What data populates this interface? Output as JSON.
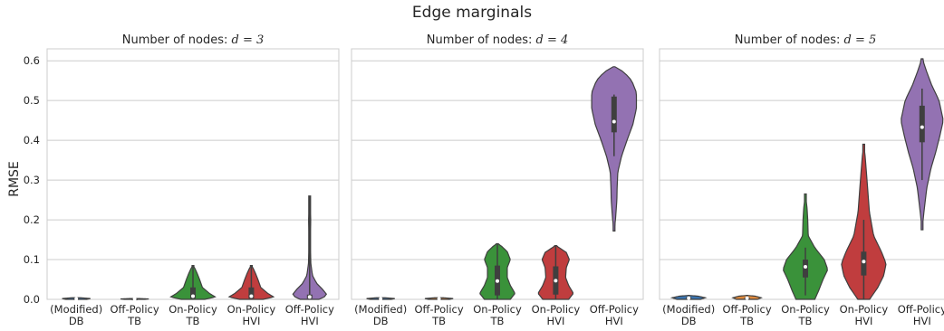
{
  "chart_data": {
    "type": "violin",
    "title": "Edge marginals",
    "ylabel": "RMSE",
    "ylim": [
      0,
      0.63
    ],
    "yticks": [
      "0.0",
      "0.1",
      "0.2",
      "0.3",
      "0.4",
      "0.5",
      "0.6"
    ],
    "grid": "horizontal",
    "categories": [
      [
        "(Modified)",
        "DB"
      ],
      [
        "Off-Policy",
        "TB"
      ],
      [
        "On-Policy",
        "TB"
      ],
      [
        "On-Policy",
        "HVI"
      ],
      [
        "Off-Policy",
        "HVI"
      ]
    ],
    "colors": [
      "#3a74b0",
      "#e08a3c",
      "#3a923a",
      "#c03d3e",
      "#9372b2"
    ],
    "panels": [
      {
        "title_prefix": "Number of nodes: ",
        "title_math": "d = 3",
        "violins": [
          {
            "min": 0.0,
            "max": 0.004,
            "profile": [
              [
                0.0,
                0.45
              ],
              [
                0.002,
                0.6
              ],
              [
                0.004,
                0.2
              ]
            ],
            "q1": 0.0,
            "median": 0.001,
            "q3": 0.002
          },
          {
            "min": 0.0,
            "max": 0.002,
            "profile": [
              [
                0.0,
                0.45
              ],
              [
                0.001,
                0.6
              ],
              [
                0.002,
                0.2
              ]
            ],
            "q1": 0.0,
            "median": 0.0005,
            "q3": 0.001
          },
          {
            "min": 0.0,
            "max": 0.085,
            "profile": [
              [
                0.0,
                0.5
              ],
              [
                0.006,
                0.95
              ],
              [
                0.015,
                0.7
              ],
              [
                0.03,
                0.4
              ],
              [
                0.05,
                0.28
              ],
              [
                0.065,
                0.18
              ],
              [
                0.078,
                0.08
              ],
              [
                0.085,
                0.0
              ]
            ],
            "q1": 0.002,
            "median": 0.008,
            "q3": 0.03
          },
          {
            "min": 0.0,
            "max": 0.085,
            "profile": [
              [
                0.0,
                0.5
              ],
              [
                0.006,
                0.95
              ],
              [
                0.015,
                0.7
              ],
              [
                0.03,
                0.4
              ],
              [
                0.05,
                0.28
              ],
              [
                0.065,
                0.18
              ],
              [
                0.078,
                0.08
              ],
              [
                0.085,
                0.0
              ]
            ],
            "q1": 0.002,
            "median": 0.008,
            "q3": 0.03
          },
          {
            "min": 0.0,
            "max": 0.26,
            "profile": [
              [
                0.0,
                0.4
              ],
              [
                0.01,
                0.75
              ],
              [
                0.025,
                0.55
              ],
              [
                0.04,
                0.3
              ],
              [
                0.06,
                0.12
              ],
              [
                0.09,
                0.05
              ],
              [
                0.14,
                0.03
              ],
              [
                0.2,
                0.045
              ],
              [
                0.23,
                0.03
              ],
              [
                0.26,
                0.0
              ]
            ],
            "q1": 0.002,
            "median": 0.006,
            "q3": 0.012
          }
        ]
      },
      {
        "title_prefix": "Number of nodes: ",
        "title_math": "d = 4",
        "violins": [
          {
            "min": 0.0,
            "max": 0.004,
            "profile": [
              [
                0.0,
                0.45
              ],
              [
                0.002,
                0.6
              ],
              [
                0.004,
                0.2
              ]
            ],
            "q1": 0.0,
            "median": 0.001,
            "q3": 0.002
          },
          {
            "min": 0.0,
            "max": 0.004,
            "profile": [
              [
                0.0,
                0.45
              ],
              [
                0.002,
                0.6
              ],
              [
                0.004,
                0.2
              ]
            ],
            "q1": 0.0,
            "median": 0.001,
            "q3": 0.002
          },
          {
            "min": 0.0,
            "max": 0.14,
            "profile": [
              [
                0.0,
                0.55
              ],
              [
                0.015,
                0.75
              ],
              [
                0.035,
                0.55
              ],
              [
                0.055,
                0.42
              ],
              [
                0.08,
                0.42
              ],
              [
                0.1,
                0.55
              ],
              [
                0.12,
                0.42
              ],
              [
                0.135,
                0.15
              ],
              [
                0.14,
                0.0
              ]
            ],
            "q1": 0.01,
            "median": 0.046,
            "q3": 0.085
          },
          {
            "min": 0.0,
            "max": 0.135,
            "profile": [
              [
                0.0,
                0.55
              ],
              [
                0.015,
                0.75
              ],
              [
                0.035,
                0.55
              ],
              [
                0.055,
                0.42
              ],
              [
                0.08,
                0.45
              ],
              [
                0.1,
                0.58
              ],
              [
                0.118,
                0.45
              ],
              [
                0.13,
                0.15
              ],
              [
                0.135,
                0.0
              ]
            ],
            "q1": 0.012,
            "median": 0.047,
            "q3": 0.083
          },
          {
            "min": 0.172,
            "max": 0.585,
            "profile": [
              [
                0.172,
                0.0
              ],
              [
                0.2,
                0.06
              ],
              [
                0.25,
                0.12
              ],
              [
                0.28,
                0.13
              ],
              [
                0.32,
                0.16
              ],
              [
                0.36,
                0.32
              ],
              [
                0.4,
                0.55
              ],
              [
                0.44,
                0.8
              ],
              [
                0.48,
                0.95
              ],
              [
                0.52,
                0.95
              ],
              [
                0.55,
                0.75
              ],
              [
                0.57,
                0.45
              ],
              [
                0.58,
                0.2
              ],
              [
                0.585,
                0.0
              ]
            ],
            "q1": 0.42,
            "median": 0.447,
            "q3": 0.51,
            "whisker_low": 0.36,
            "whisker_high": 0.515
          }
        ]
      },
      {
        "title_prefix": "Number of nodes: ",
        "title_math": "d = 5",
        "violins": [
          {
            "min": 0.0,
            "max": 0.01,
            "profile": [
              [
                0.0,
                0.5
              ],
              [
                0.004,
                0.7
              ],
              [
                0.008,
                0.4
              ],
              [
                0.01,
                0.0
              ]
            ],
            "q1": 0.001,
            "median": 0.003,
            "q3": 0.006
          },
          {
            "min": 0.0,
            "max": 0.01,
            "profile": [
              [
                0.0,
                0.45
              ],
              [
                0.004,
                0.6
              ],
              [
                0.008,
                0.35
              ],
              [
                0.01,
                0.0
              ]
            ],
            "q1": 0.001,
            "median": 0.003,
            "q3": 0.005
          },
          {
            "min": 0.0,
            "max": 0.265,
            "profile": [
              [
                0.0,
                0.4
              ],
              [
                0.02,
                0.55
              ],
              [
                0.05,
                0.75
              ],
              [
                0.075,
                0.95
              ],
              [
                0.1,
                0.8
              ],
              [
                0.13,
                0.4
              ],
              [
                0.16,
                0.12
              ],
              [
                0.2,
                0.1
              ],
              [
                0.23,
                0.07
              ],
              [
                0.265,
                0.0
              ]
            ],
            "q1": 0.055,
            "median": 0.082,
            "q3": 0.1,
            "whisker_low": 0.01,
            "whisker_high": 0.13
          },
          {
            "min": 0.0,
            "max": 0.39,
            "profile": [
              [
                0.0,
                0.25
              ],
              [
                0.03,
                0.6
              ],
              [
                0.06,
                0.85
              ],
              [
                0.09,
                0.95
              ],
              [
                0.12,
                0.75
              ],
              [
                0.16,
                0.42
              ],
              [
                0.22,
                0.24
              ],
              [
                0.3,
                0.14
              ],
              [
                0.36,
                0.06
              ],
              [
                0.39,
                0.0
              ]
            ],
            "q1": 0.06,
            "median": 0.095,
            "q3": 0.12,
            "whisker_low": 0.0,
            "whisker_high": 0.2
          },
          {
            "min": 0.175,
            "max": 0.605,
            "profile": [
              [
                0.175,
                0.0
              ],
              [
                0.22,
                0.08
              ],
              [
                0.28,
                0.2
              ],
              [
                0.33,
                0.38
              ],
              [
                0.37,
                0.58
              ],
              [
                0.41,
                0.75
              ],
              [
                0.45,
                0.9
              ],
              [
                0.5,
                0.72
              ],
              [
                0.54,
                0.4
              ],
              [
                0.575,
                0.18
              ],
              [
                0.6,
                0.04
              ],
              [
                0.605,
                0.0
              ]
            ],
            "q1": 0.395,
            "median": 0.433,
            "q3": 0.487,
            "whisker_low": 0.3,
            "whisker_high": 0.53
          }
        ]
      }
    ]
  }
}
